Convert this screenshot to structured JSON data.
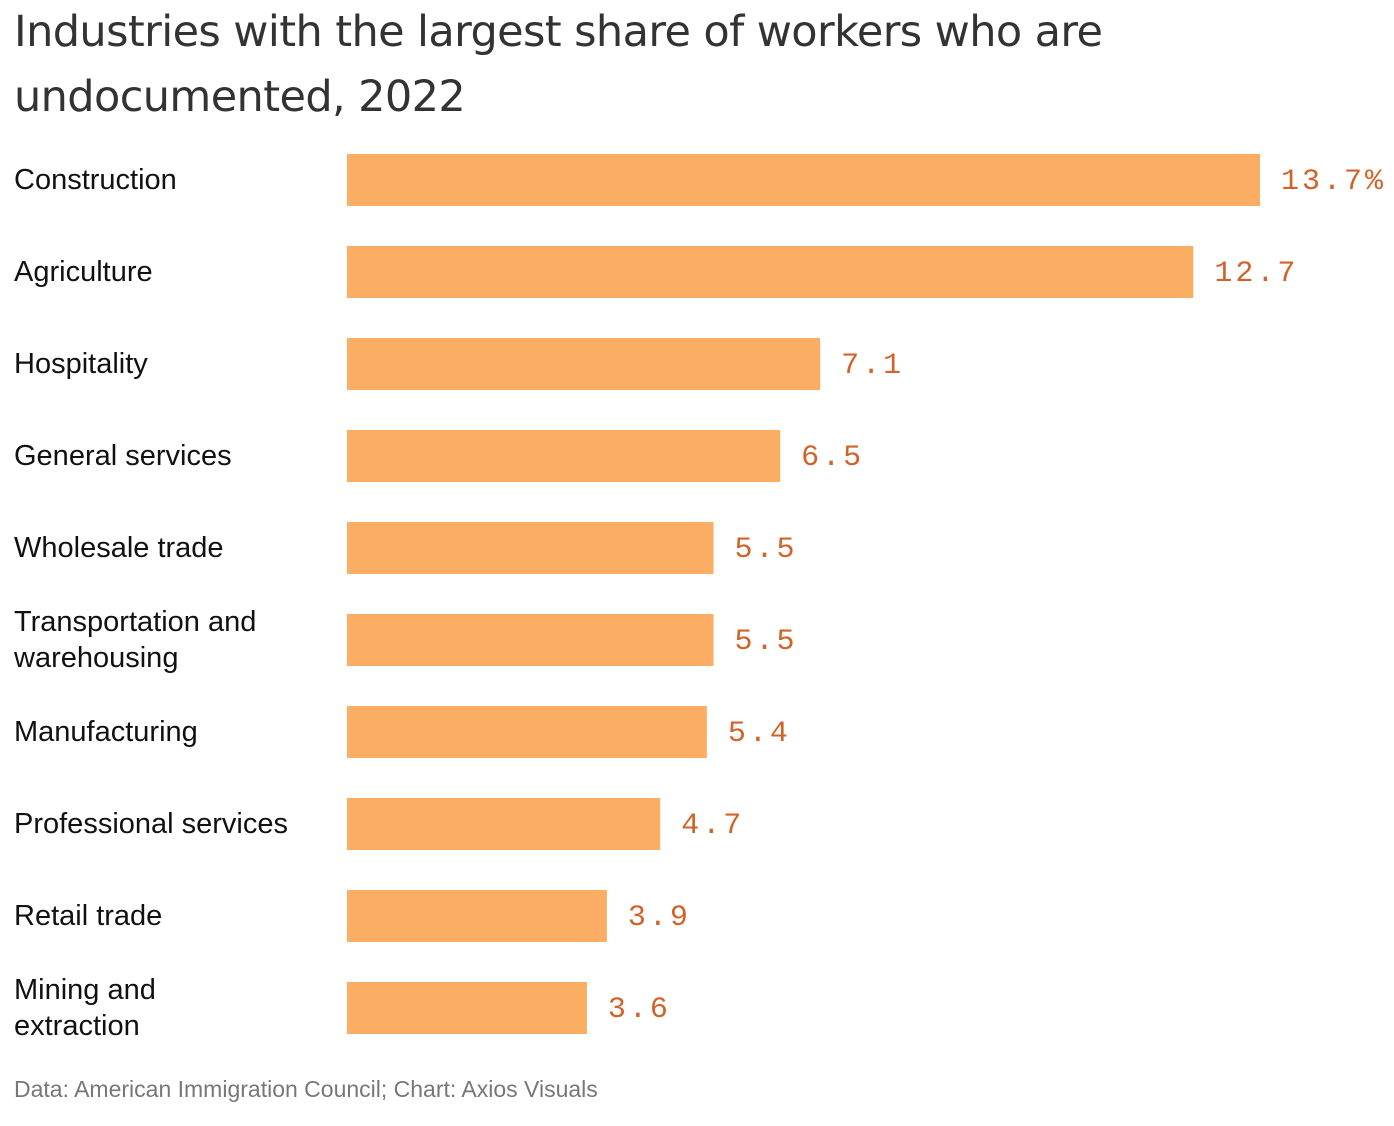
{
  "title_lines": [
    "Industries with the largest share of workers who are",
    "undocumented, 2022"
  ],
  "source": "Data: American Immigration Council; Chart: Axios Visuals",
  "colors": {
    "bar": "#fbae63",
    "value_label": "#d0632a",
    "text": "#111111",
    "source": "#777777"
  },
  "chart_data": {
    "type": "bar",
    "orientation": "horizontal",
    "title": "Industries with the largest share of workers who are undocumented, 2022",
    "categories": [
      [
        "Construction"
      ],
      [
        "Agriculture"
      ],
      [
        "Hospitality"
      ],
      [
        "General services"
      ],
      [
        "Wholesale trade"
      ],
      [
        "Transportation and",
        "warehousing"
      ],
      [
        "Manufacturing"
      ],
      [
        "Professional services"
      ],
      [
        "Retail trade"
      ],
      [
        "Mining and",
        "extraction"
      ]
    ],
    "values": [
      13.7,
      12.7,
      7.1,
      6.5,
      5.5,
      5.5,
      5.4,
      4.7,
      3.9,
      3.6
    ],
    "value_labels": [
      "13.7%",
      "12.7",
      "7.1",
      "6.5",
      "5.5",
      "5.5",
      "5.4",
      "4.7",
      "3.9",
      "3.6"
    ],
    "unit": "%",
    "xlim": [
      0,
      13.7
    ],
    "grid": false,
    "legend": "none"
  }
}
